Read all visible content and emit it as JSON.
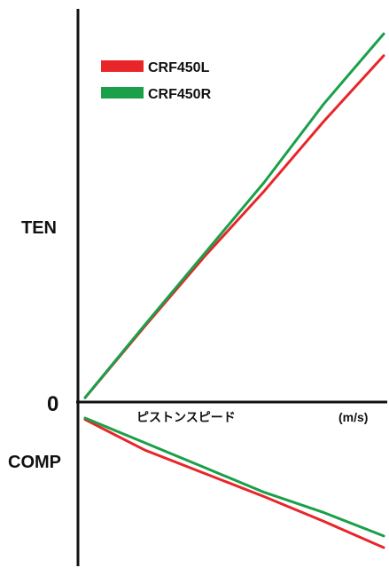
{
  "chart_data": {
    "type": "line",
    "title": "",
    "xlabel": "ピストンスピード",
    "xunit": "(m/s)",
    "ylabel_positive": "TEN",
    "ylabel_negative": "COMP",
    "zero_label": "0",
    "grid": false,
    "legend_position": "top-left",
    "xlim": [
      0,
      100
    ],
    "ylim": [
      -100,
      240
    ],
    "series": [
      {
        "name": "CRF450L",
        "color": "#e8262a",
        "tension": {
          "x": [
            0,
            20,
            40,
            60,
            80,
            100
          ],
          "y": [
            3,
            52,
            100,
            145,
            193,
            238
          ]
        },
        "compression": {
          "x": [
            0,
            20,
            40,
            60,
            80,
            100
          ],
          "y": [
            -12,
            -33,
            -49,
            -65,
            -82,
            -100
          ]
        }
      },
      {
        "name": "CRF450R",
        "color": "#1aa049",
        "tension": {
          "x": [
            0,
            20,
            40,
            60,
            80,
            100
          ],
          "y": [
            3,
            53,
            102,
            151,
            205,
            253
          ]
        },
        "compression": {
          "x": [
            0,
            20,
            40,
            60,
            80,
            100
          ],
          "y": [
            -11,
            -28,
            -45,
            -62,
            -76,
            -92
          ]
        }
      }
    ]
  }
}
